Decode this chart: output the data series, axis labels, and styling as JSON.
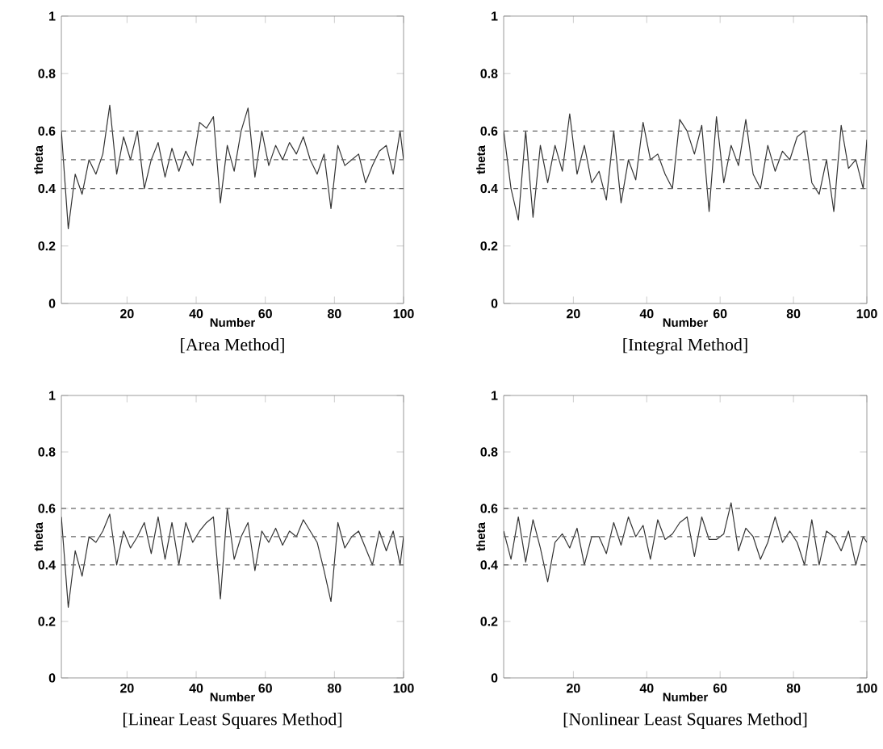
{
  "chart_data": [
    {
      "type": "line",
      "title": "[Area Method]",
      "xlabel": "Number",
      "ylabel": "theta",
      "xlim": [
        1,
        100
      ],
      "ylim": [
        0,
        1
      ],
      "xticks": [
        20,
        40,
        60,
        80,
        100
      ],
      "yticks": [
        0,
        0.2,
        0.4,
        0.6,
        0.8,
        1
      ],
      "ref_lines": [
        {
          "axis": "y",
          "value": 0.4,
          "color": "#666666",
          "line_style": "dashed"
        },
        {
          "axis": "y",
          "value": 0.5,
          "color": "#666666",
          "line_style": "dashed"
        },
        {
          "axis": "y",
          "value": 0.6,
          "color": "#666666",
          "line_style": "dashed"
        }
      ],
      "series": [
        {
          "color": "#333333",
          "x": [
            1,
            3,
            5,
            7,
            9,
            11,
            13,
            15,
            17,
            19,
            21,
            23,
            25,
            27,
            29,
            31,
            33,
            35,
            37,
            39,
            41,
            43,
            45,
            47,
            49,
            51,
            53,
            55,
            57,
            59,
            61,
            63,
            65,
            67,
            69,
            71,
            73,
            75,
            77,
            79,
            81,
            83,
            85,
            87,
            89,
            91,
            93,
            95,
            97,
            99,
            100
          ],
          "values": [
            0.6,
            0.26,
            0.45,
            0.38,
            0.5,
            0.45,
            0.52,
            0.69,
            0.45,
            0.58,
            0.5,
            0.6,
            0.4,
            0.5,
            0.56,
            0.44,
            0.54,
            0.46,
            0.53,
            0.48,
            0.63,
            0.61,
            0.65,
            0.35,
            0.55,
            0.46,
            0.6,
            0.68,
            0.44,
            0.6,
            0.48,
            0.55,
            0.5,
            0.56,
            0.52,
            0.58,
            0.5,
            0.45,
            0.52,
            0.33,
            0.55,
            0.48,
            0.5,
            0.52,
            0.42,
            0.48,
            0.53,
            0.55,
            0.45,
            0.6,
            0.5
          ]
        }
      ]
    },
    {
      "type": "line",
      "title": "[Integral Method]",
      "xlabel": "Number",
      "ylabel": "theta",
      "xlim": [
        1,
        100
      ],
      "ylim": [
        0,
        1
      ],
      "xticks": [
        20,
        40,
        60,
        80,
        100
      ],
      "yticks": [
        0,
        0.2,
        0.4,
        0.6,
        0.8,
        1
      ],
      "ref_lines": [
        {
          "axis": "y",
          "value": 0.4,
          "color": "#666666",
          "line_style": "dashed"
        },
        {
          "axis": "y",
          "value": 0.5,
          "color": "#666666",
          "line_style": "dashed"
        },
        {
          "axis": "y",
          "value": 0.6,
          "color": "#666666",
          "line_style": "dashed"
        }
      ],
      "series": [
        {
          "color": "#333333",
          "x": [
            1,
            3,
            5,
            7,
            9,
            11,
            13,
            15,
            17,
            19,
            21,
            23,
            25,
            27,
            29,
            31,
            33,
            35,
            37,
            39,
            41,
            43,
            45,
            47,
            49,
            51,
            53,
            55,
            57,
            59,
            61,
            63,
            65,
            67,
            69,
            71,
            73,
            75,
            77,
            79,
            81,
            83,
            85,
            87,
            89,
            91,
            93,
            95,
            97,
            99,
            100
          ],
          "values": [
            0.6,
            0.4,
            0.29,
            0.6,
            0.3,
            0.55,
            0.42,
            0.55,
            0.46,
            0.66,
            0.45,
            0.55,
            0.42,
            0.46,
            0.36,
            0.6,
            0.35,
            0.5,
            0.43,
            0.63,
            0.5,
            0.52,
            0.45,
            0.4,
            0.64,
            0.6,
            0.52,
            0.62,
            0.32,
            0.65,
            0.42,
            0.55,
            0.48,
            0.64,
            0.45,
            0.4,
            0.55,
            0.46,
            0.53,
            0.5,
            0.58,
            0.6,
            0.42,
            0.38,
            0.5,
            0.32,
            0.62,
            0.47,
            0.5,
            0.4,
            0.57
          ]
        }
      ]
    },
    {
      "type": "line",
      "title": "[Linear Least Squares Method]",
      "xlabel": "Number",
      "ylabel": "theta",
      "xlim": [
        1,
        100
      ],
      "ylim": [
        0,
        1
      ],
      "xticks": [
        20,
        40,
        60,
        80,
        100
      ],
      "yticks": [
        0,
        0.2,
        0.4,
        0.6,
        0.8,
        1
      ],
      "ref_lines": [
        {
          "axis": "y",
          "value": 0.4,
          "color": "#666666",
          "line_style": "dashed"
        },
        {
          "axis": "y",
          "value": 0.5,
          "color": "#666666",
          "line_style": "dashed"
        },
        {
          "axis": "y",
          "value": 0.6,
          "color": "#666666",
          "line_style": "dashed"
        }
      ],
      "series": [
        {
          "color": "#333333",
          "x": [
            1,
            3,
            5,
            7,
            9,
            11,
            13,
            15,
            17,
            19,
            21,
            23,
            25,
            27,
            29,
            31,
            33,
            35,
            37,
            39,
            41,
            43,
            45,
            47,
            49,
            51,
            53,
            55,
            57,
            59,
            61,
            63,
            65,
            67,
            69,
            71,
            73,
            75,
            77,
            79,
            81,
            83,
            85,
            87,
            89,
            91,
            93,
            95,
            97,
            99,
            100
          ],
          "values": [
            0.57,
            0.25,
            0.45,
            0.36,
            0.5,
            0.48,
            0.52,
            0.58,
            0.4,
            0.52,
            0.46,
            0.5,
            0.55,
            0.44,
            0.57,
            0.42,
            0.55,
            0.4,
            0.55,
            0.48,
            0.52,
            0.55,
            0.57,
            0.28,
            0.6,
            0.42,
            0.5,
            0.55,
            0.38,
            0.52,
            0.48,
            0.53,
            0.47,
            0.52,
            0.5,
            0.56,
            0.52,
            0.48,
            0.38,
            0.27,
            0.55,
            0.46,
            0.5,
            0.52,
            0.46,
            0.4,
            0.52,
            0.45,
            0.52,
            0.4,
            0.5
          ]
        }
      ]
    },
    {
      "type": "line",
      "title": "[Nonlinear Least Squares Method]",
      "xlabel": "Number",
      "ylabel": "theta",
      "xlim": [
        1,
        100
      ],
      "ylim": [
        0,
        1
      ],
      "xticks": [
        20,
        40,
        60,
        80,
        100
      ],
      "yticks": [
        0,
        0.2,
        0.4,
        0.6,
        0.8,
        1
      ],
      "ref_lines": [
        {
          "axis": "y",
          "value": 0.4,
          "color": "#666666",
          "line_style": "dashed"
        },
        {
          "axis": "y",
          "value": 0.5,
          "color": "#666666",
          "line_style": "dashed"
        },
        {
          "axis": "y",
          "value": 0.6,
          "color": "#666666",
          "line_style": "dashed"
        }
      ],
      "series": [
        {
          "color": "#333333",
          "x": [
            1,
            3,
            5,
            7,
            9,
            11,
            13,
            15,
            17,
            19,
            21,
            23,
            25,
            27,
            29,
            31,
            33,
            35,
            37,
            39,
            41,
            43,
            45,
            47,
            49,
            51,
            53,
            55,
            57,
            59,
            61,
            63,
            65,
            67,
            69,
            71,
            73,
            75,
            77,
            79,
            81,
            83,
            85,
            87,
            89,
            91,
            93,
            95,
            97,
            99,
            100
          ],
          "values": [
            0.52,
            0.42,
            0.57,
            0.41,
            0.56,
            0.46,
            0.34,
            0.48,
            0.51,
            0.46,
            0.53,
            0.4,
            0.5,
            0.5,
            0.44,
            0.55,
            0.47,
            0.57,
            0.5,
            0.54,
            0.42,
            0.56,
            0.49,
            0.51,
            0.55,
            0.57,
            0.43,
            0.57,
            0.49,
            0.49,
            0.51,
            0.62,
            0.45,
            0.53,
            0.5,
            0.42,
            0.48,
            0.57,
            0.48,
            0.52,
            0.48,
            0.4,
            0.56,
            0.4,
            0.52,
            0.5,
            0.45,
            0.52,
            0.4,
            0.5,
            0.48
          ]
        }
      ]
    }
  ]
}
